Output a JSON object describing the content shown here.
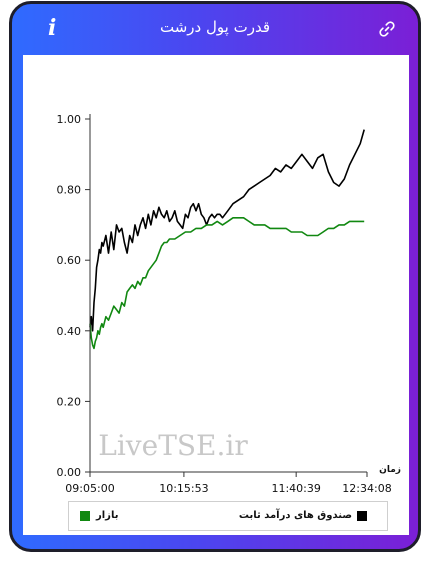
{
  "header": {
    "title": "قدرت پول درشت",
    "info_icon": "i",
    "link_icon_name": "link-icon"
  },
  "watermark": "LiveTSE.ir",
  "chart_data": {
    "type": "line",
    "xlabel": "زمان",
    "ylabel": "",
    "x_ticks": [
      "09:05:00",
      "10:15:53",
      "11:40:39",
      "12:34:08"
    ],
    "x_tick_positions_minutes": [
      0,
      70.9,
      155.65,
      209.13
    ],
    "xlim": [
      0,
      209.13
    ],
    "ylim": [
      0,
      1.0
    ],
    "y_ticks": [
      0.0,
      0.2,
      0.4,
      0.6,
      0.8,
      1.0
    ],
    "y_tick_labels": [
      "0.00",
      "0.20",
      "0.40",
      "0.60",
      "0.80",
      "1.00"
    ],
    "grid": false,
    "legend_position": "bottom",
    "series": [
      {
        "name": "صندوق های درآمد ثابت",
        "color": "#000000",
        "x": [
          0,
          1,
          2,
          3,
          4,
          5,
          6,
          7,
          8,
          9,
          10,
          12,
          14,
          16,
          18,
          20,
          22,
          24,
          26,
          28,
          30,
          32,
          34,
          36,
          38,
          40,
          42,
          44,
          46,
          48,
          50,
          52,
          54,
          56,
          58,
          60,
          62,
          64,
          66,
          68,
          70,
          72,
          74,
          76,
          78,
          80,
          82,
          84,
          86,
          88,
          90,
          92,
          94,
          96,
          98,
          100,
          104,
          108,
          112,
          116,
          120,
          124,
          128,
          132,
          136,
          140,
          144,
          148,
          152,
          156,
          160,
          164,
          168,
          172,
          176,
          180,
          184,
          188,
          192,
          196,
          200,
          204,
          207
        ],
        "values": [
          0.41,
          0.44,
          0.4,
          0.48,
          0.52,
          0.58,
          0.6,
          0.63,
          0.62,
          0.65,
          0.64,
          0.67,
          0.62,
          0.68,
          0.63,
          0.7,
          0.68,
          0.69,
          0.65,
          0.62,
          0.67,
          0.65,
          0.7,
          0.67,
          0.7,
          0.72,
          0.69,
          0.73,
          0.7,
          0.74,
          0.72,
          0.75,
          0.73,
          0.72,
          0.74,
          0.71,
          0.72,
          0.74,
          0.71,
          0.7,
          0.69,
          0.73,
          0.72,
          0.75,
          0.76,
          0.74,
          0.76,
          0.73,
          0.72,
          0.7,
          0.72,
          0.73,
          0.72,
          0.73,
          0.73,
          0.72,
          0.74,
          0.76,
          0.77,
          0.78,
          0.8,
          0.81,
          0.82,
          0.83,
          0.84,
          0.86,
          0.85,
          0.87,
          0.86,
          0.88,
          0.9,
          0.88,
          0.86,
          0.89,
          0.9,
          0.85,
          0.82,
          0.81,
          0.83,
          0.87,
          0.9,
          0.93,
          0.97
        ]
      },
      {
        "name": "بازار",
        "color": "#118811",
        "x": [
          0,
          1,
          2,
          3,
          4,
          5,
          6,
          7,
          8,
          9,
          10,
          12,
          14,
          16,
          18,
          20,
          22,
          24,
          26,
          28,
          30,
          32,
          34,
          36,
          38,
          40,
          42,
          44,
          46,
          48,
          50,
          52,
          54,
          56,
          58,
          60,
          64,
          68,
          72,
          76,
          80,
          84,
          88,
          92,
          96,
          100,
          104,
          108,
          112,
          116,
          120,
          124,
          128,
          132,
          136,
          140,
          144,
          148,
          152,
          156,
          160,
          164,
          168,
          172,
          176,
          180,
          184,
          188,
          192,
          196,
          200,
          204,
          207
        ],
        "values": [
          0.42,
          0.38,
          0.36,
          0.35,
          0.37,
          0.38,
          0.4,
          0.39,
          0.41,
          0.42,
          0.41,
          0.44,
          0.43,
          0.45,
          0.47,
          0.46,
          0.45,
          0.48,
          0.47,
          0.51,
          0.52,
          0.53,
          0.52,
          0.54,
          0.53,
          0.55,
          0.55,
          0.57,
          0.58,
          0.59,
          0.6,
          0.62,
          0.64,
          0.65,
          0.65,
          0.66,
          0.66,
          0.67,
          0.68,
          0.68,
          0.69,
          0.69,
          0.7,
          0.7,
          0.71,
          0.7,
          0.71,
          0.72,
          0.72,
          0.72,
          0.71,
          0.7,
          0.7,
          0.7,
          0.69,
          0.69,
          0.69,
          0.69,
          0.68,
          0.68,
          0.68,
          0.67,
          0.67,
          0.67,
          0.68,
          0.69,
          0.69,
          0.7,
          0.7,
          0.71,
          0.71,
          0.71,
          0.71
        ]
      }
    ]
  }
}
